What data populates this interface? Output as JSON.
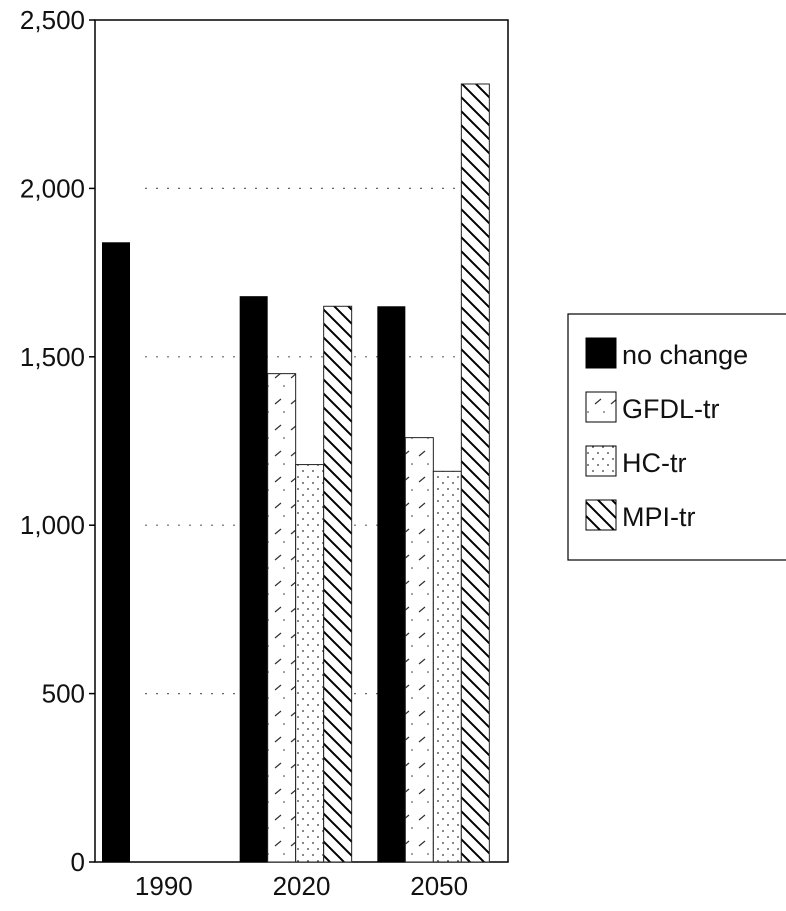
{
  "chart_data": {
    "type": "bar",
    "title": "",
    "xlabel": "",
    "ylabel": "",
    "categories": [
      "1990",
      "2020",
      "2050"
    ],
    "ylim": [
      0,
      2500
    ],
    "yticks": [
      "0",
      "500",
      "1,000",
      "1,500",
      "2,000",
      "2,500"
    ],
    "grid": "dotted horizontal",
    "legend_position": "right",
    "series": [
      {
        "name": "no change",
        "values": [
          1840,
          1680,
          1650
        ],
        "color": "#000000",
        "pattern": "solid"
      },
      {
        "name": "GFDL-tr",
        "values": [
          0,
          1450,
          1260
        ],
        "color": "#555555",
        "pattern": "sparse-dash"
      },
      {
        "name": "HC-tr",
        "values": [
          0,
          1180,
          1160
        ],
        "color": "#555555",
        "pattern": "dots"
      },
      {
        "name": "MPI-tr",
        "values": [
          0,
          1650,
          2310
        ],
        "color": "#000000",
        "pattern": "diagonal-hatch"
      }
    ]
  }
}
